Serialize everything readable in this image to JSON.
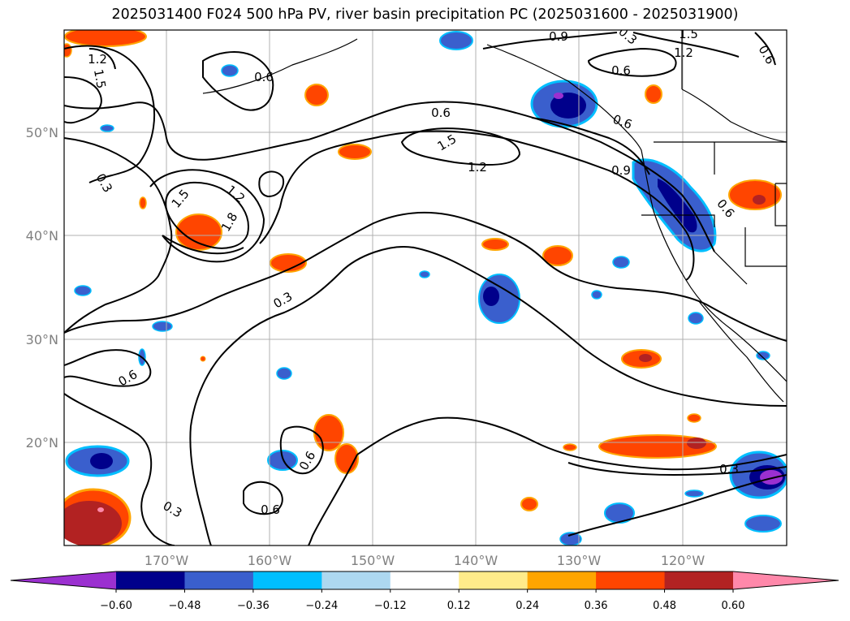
{
  "title": "2025031400 F024 500 hPa PV, river basin precipitation PC (2025031600 - 2025031900)",
  "map": {
    "lat_ticks": [
      "50°N",
      "40°N",
      "30°N",
      "20°N"
    ],
    "lon_ticks": [
      "170°W",
      "160°W",
      "150°W",
      "140°W",
      "130°W",
      "120°W"
    ],
    "contour_labels": [
      "1.2",
      "1.5",
      "0.6",
      "0.9",
      "1.5",
      "1.2",
      "0.6",
      "0.6",
      "0.3",
      "0.6",
      "1.5",
      "1.2",
      "0.9",
      "0.3",
      "1.5",
      "1.2",
      "1.8",
      "0.3",
      "0.6",
      "0.6",
      "0.6",
      "0.3",
      "0.6",
      "0.3",
      "0.6"
    ]
  },
  "colorbar": {
    "ticks": [
      "−0.60",
      "−0.48",
      "−0.36",
      "−0.24",
      "−0.12",
      "0.12",
      "0.24",
      "0.36",
      "0.48",
      "0.60"
    ],
    "colors": [
      "#9b30d0",
      "#00008b",
      "#3a5fcd",
      "#00bfff",
      "#add8f0",
      "#ffffff",
      "#ffeb8a",
      "#ffa500",
      "#ff4500",
      "#b22222",
      "#ff88aa",
      "#ff88aa"
    ]
  },
  "colors": {
    "neg_strong": "#00008b",
    "neg_mid": "#3a5fcd",
    "neg_light": "#00bfff",
    "pos_mid": "#ff4500",
    "pos_strong": "#b22222"
  }
}
